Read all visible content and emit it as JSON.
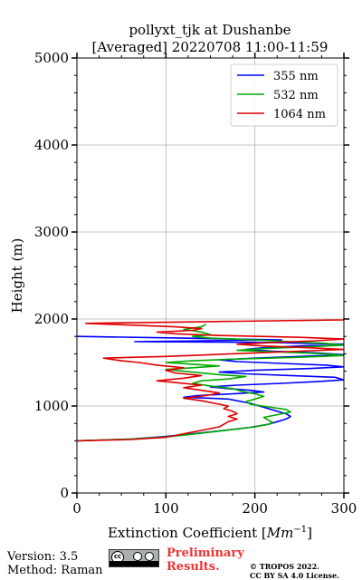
{
  "chart_data": {
    "type": "line",
    "title": "pollyxt_tjk at Dushanbe",
    "subtitle": "[Averaged] 20220708 11:00-11:59",
    "xlabel": "Extinction Coefficient [",
    "xlabel_unit": "Mm",
    "xlabel_exp": "−1",
    "xlabel_end": "]",
    "ylabel": "Height (m)",
    "xlim": [
      0,
      300
    ],
    "ylim": [
      0,
      5000
    ],
    "x_ticks": [
      0,
      100,
      200,
      300
    ],
    "y_ticks": [
      0,
      1000,
      2000,
      3000,
      4000,
      5000
    ],
    "x_tick_labels": [
      "0",
      "100",
      "200",
      "300"
    ],
    "y_tick_labels": [
      "0",
      "1000",
      "2000",
      "3000",
      "4000",
      "5000"
    ],
    "grid": true,
    "legend_position": "top-right",
    "series": [
      {
        "name": "355 nm",
        "color": "#0000ff",
        "points": [
          [
            0,
            600
          ],
          [
            60,
            620
          ],
          [
            100,
            650
          ],
          [
            130,
            680
          ],
          [
            165,
            720
          ],
          [
            195,
            755
          ],
          [
            215,
            790
          ],
          [
            225,
            820
          ],
          [
            235,
            850
          ],
          [
            240,
            880
          ],
          [
            235,
            910
          ],
          [
            225,
            940
          ],
          [
            215,
            970
          ],
          [
            205,
            1000
          ],
          [
            195,
            1030
          ],
          [
            180,
            1060
          ],
          [
            170,
            1080
          ],
          [
            150,
            1090
          ],
          [
            120,
            1100
          ],
          [
            135,
            1120
          ],
          [
            175,
            1140
          ],
          [
            210,
            1160
          ],
          [
            195,
            1180
          ],
          [
            170,
            1200
          ],
          [
            150,
            1220
          ],
          [
            180,
            1240
          ],
          [
            230,
            1260
          ],
          [
            270,
            1280
          ],
          [
            300,
            1300
          ],
          [
            290,
            1330
          ],
          [
            240,
            1350
          ],
          [
            190,
            1370
          ],
          [
            160,
            1390
          ],
          [
            200,
            1410
          ],
          [
            260,
            1430
          ],
          [
            300,
            1450
          ],
          [
            280,
            1470
          ],
          [
            230,
            1490
          ],
          [
            180,
            1510
          ],
          [
            160,
            1530
          ],
          [
            200,
            1550
          ],
          [
            250,
            1570
          ],
          [
            300,
            1590
          ],
          [
            270,
            1610
          ],
          [
            220,
            1630
          ],
          [
            190,
            1650
          ],
          [
            210,
            1670
          ],
          [
            250,
            1690
          ],
          [
            300,
            1710
          ],
          [
            220,
            1730
          ],
          [
            65,
            1740
          ],
          [
            230,
            1760
          ],
          [
            120,
            1780
          ],
          [
            0,
            1800
          ]
        ]
      },
      {
        "name": "532 nm",
        "color": "#00aa00",
        "points": [
          [
            0,
            600
          ],
          [
            60,
            620
          ],
          [
            100,
            645
          ],
          [
            125,
            670
          ],
          [
            150,
            700
          ],
          [
            175,
            730
          ],
          [
            200,
            760
          ],
          [
            215,
            790
          ],
          [
            220,
            810
          ],
          [
            215,
            840
          ],
          [
            210,
            870
          ],
          [
            225,
            900
          ],
          [
            240,
            930
          ],
          [
            235,
            960
          ],
          [
            215,
            990
          ],
          [
            195,
            1020
          ],
          [
            190,
            1050
          ],
          [
            200,
            1080
          ],
          [
            210,
            1110
          ],
          [
            200,
            1140
          ],
          [
            185,
            1170
          ],
          [
            175,
            1200
          ],
          [
            150,
            1230
          ],
          [
            130,
            1260
          ],
          [
            140,
            1290
          ],
          [
            170,
            1310
          ],
          [
            190,
            1340
          ],
          [
            160,
            1360
          ],
          [
            130,
            1390
          ],
          [
            100,
            1420
          ],
          [
            130,
            1440
          ],
          [
            160,
            1460
          ],
          [
            130,
            1480
          ],
          [
            100,
            1500
          ],
          [
            130,
            1520
          ],
          [
            180,
            1540
          ],
          [
            250,
            1560
          ],
          [
            300,
            1580
          ],
          [
            280,
            1600
          ],
          [
            230,
            1620
          ],
          [
            180,
            1640
          ],
          [
            210,
            1660
          ],
          [
            260,
            1680
          ],
          [
            300,
            1700
          ],
          [
            280,
            1720
          ],
          [
            240,
            1740
          ],
          [
            200,
            1760
          ],
          [
            150,
            1780
          ],
          [
            130,
            1800
          ],
          [
            150,
            1820
          ],
          [
            140,
            1850
          ],
          [
            120,
            1880
          ],
          [
            140,
            1910
          ],
          [
            145,
            1940
          ]
        ]
      },
      {
        "name": "1064 nm",
        "color": "#dd0000",
        "points": [
          [
            0,
            600
          ],
          [
            60,
            615
          ],
          [
            100,
            640
          ],
          [
            120,
            680
          ],
          [
            140,
            720
          ],
          [
            160,
            760
          ],
          [
            165,
            790
          ],
          [
            170,
            820
          ],
          [
            180,
            850
          ],
          [
            170,
            880
          ],
          [
            180,
            910
          ],
          [
            175,
            940
          ],
          [
            165,
            970
          ],
          [
            170,
            1000
          ],
          [
            155,
            1030
          ],
          [
            140,
            1060
          ],
          [
            120,
            1090
          ],
          [
            145,
            1120
          ],
          [
            160,
            1150
          ],
          [
            140,
            1180
          ],
          [
            120,
            1210
          ],
          [
            140,
            1240
          ],
          [
            110,
            1270
          ],
          [
            90,
            1290
          ],
          [
            120,
            1320
          ],
          [
            140,
            1350
          ],
          [
            110,
            1380
          ],
          [
            100,
            1410
          ],
          [
            120,
            1440
          ],
          [
            90,
            1470
          ],
          [
            70,
            1500
          ],
          [
            50,
            1520
          ],
          [
            30,
            1550
          ],
          [
            100,
            1570
          ],
          [
            150,
            1590
          ],
          [
            200,
            1610
          ],
          [
            250,
            1630
          ],
          [
            300,
            1650
          ],
          [
            260,
            1670
          ],
          [
            210,
            1690
          ],
          [
            180,
            1710
          ],
          [
            220,
            1730
          ],
          [
            270,
            1750
          ],
          [
            300,
            1770
          ],
          [
            250,
            1790
          ],
          [
            160,
            1810
          ],
          [
            110,
            1830
          ],
          [
            90,
            1850
          ],
          [
            130,
            1870
          ],
          [
            140,
            1890
          ],
          [
            110,
            1910
          ],
          [
            60,
            1930
          ],
          [
            10,
            1950
          ],
          [
            150,
            1970
          ],
          [
            300,
            1990
          ],
          [
            300,
            2010
          ]
        ]
      }
    ]
  },
  "footer": {
    "version": "Version: 3.5",
    "method": "Method: Raman",
    "preliminary_line1": "Preliminary",
    "preliminary_line2": "Results.",
    "copyright_line1": "© TROPOS 2022.",
    "copyright_line2": "CC BY SA 4.0 License."
  }
}
